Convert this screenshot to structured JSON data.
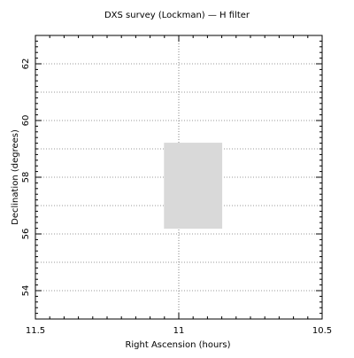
{
  "chart_data": {
    "type": "area",
    "title": "DXS survey (Lockman) — H filter",
    "xlabel": "Right Ascension (hours)",
    "ylabel": "Declination (degrees)",
    "xlim": [
      11.5,
      10.5
    ],
    "ylim": [
      53,
      63
    ],
    "x_ticks": [
      {
        "value": 11.5,
        "label": "11.5"
      },
      {
        "value": 11,
        "label": "11"
      },
      {
        "value": 10.5,
        "label": "10.5"
      }
    ],
    "y_ticks": [
      {
        "value": 54,
        "label": "54"
      },
      {
        "value": 56,
        "label": "56"
      },
      {
        "value": 58,
        "label": "58"
      },
      {
        "value": 60,
        "label": "60"
      },
      {
        "value": 62,
        "label": "62"
      }
    ],
    "x_minor_step": 0.05,
    "y_minor_step": 0.2,
    "grid": true,
    "grid_y_values": [
      54,
      55,
      56,
      57,
      58,
      59,
      60,
      61,
      62
    ],
    "grid_x_values": [
      11
    ],
    "regions": [
      {
        "x0": 11.05,
        "x1": 10.85,
        "y0": 56.2,
        "y1": 59.2,
        "color": "#d9d9d9"
      }
    ]
  }
}
